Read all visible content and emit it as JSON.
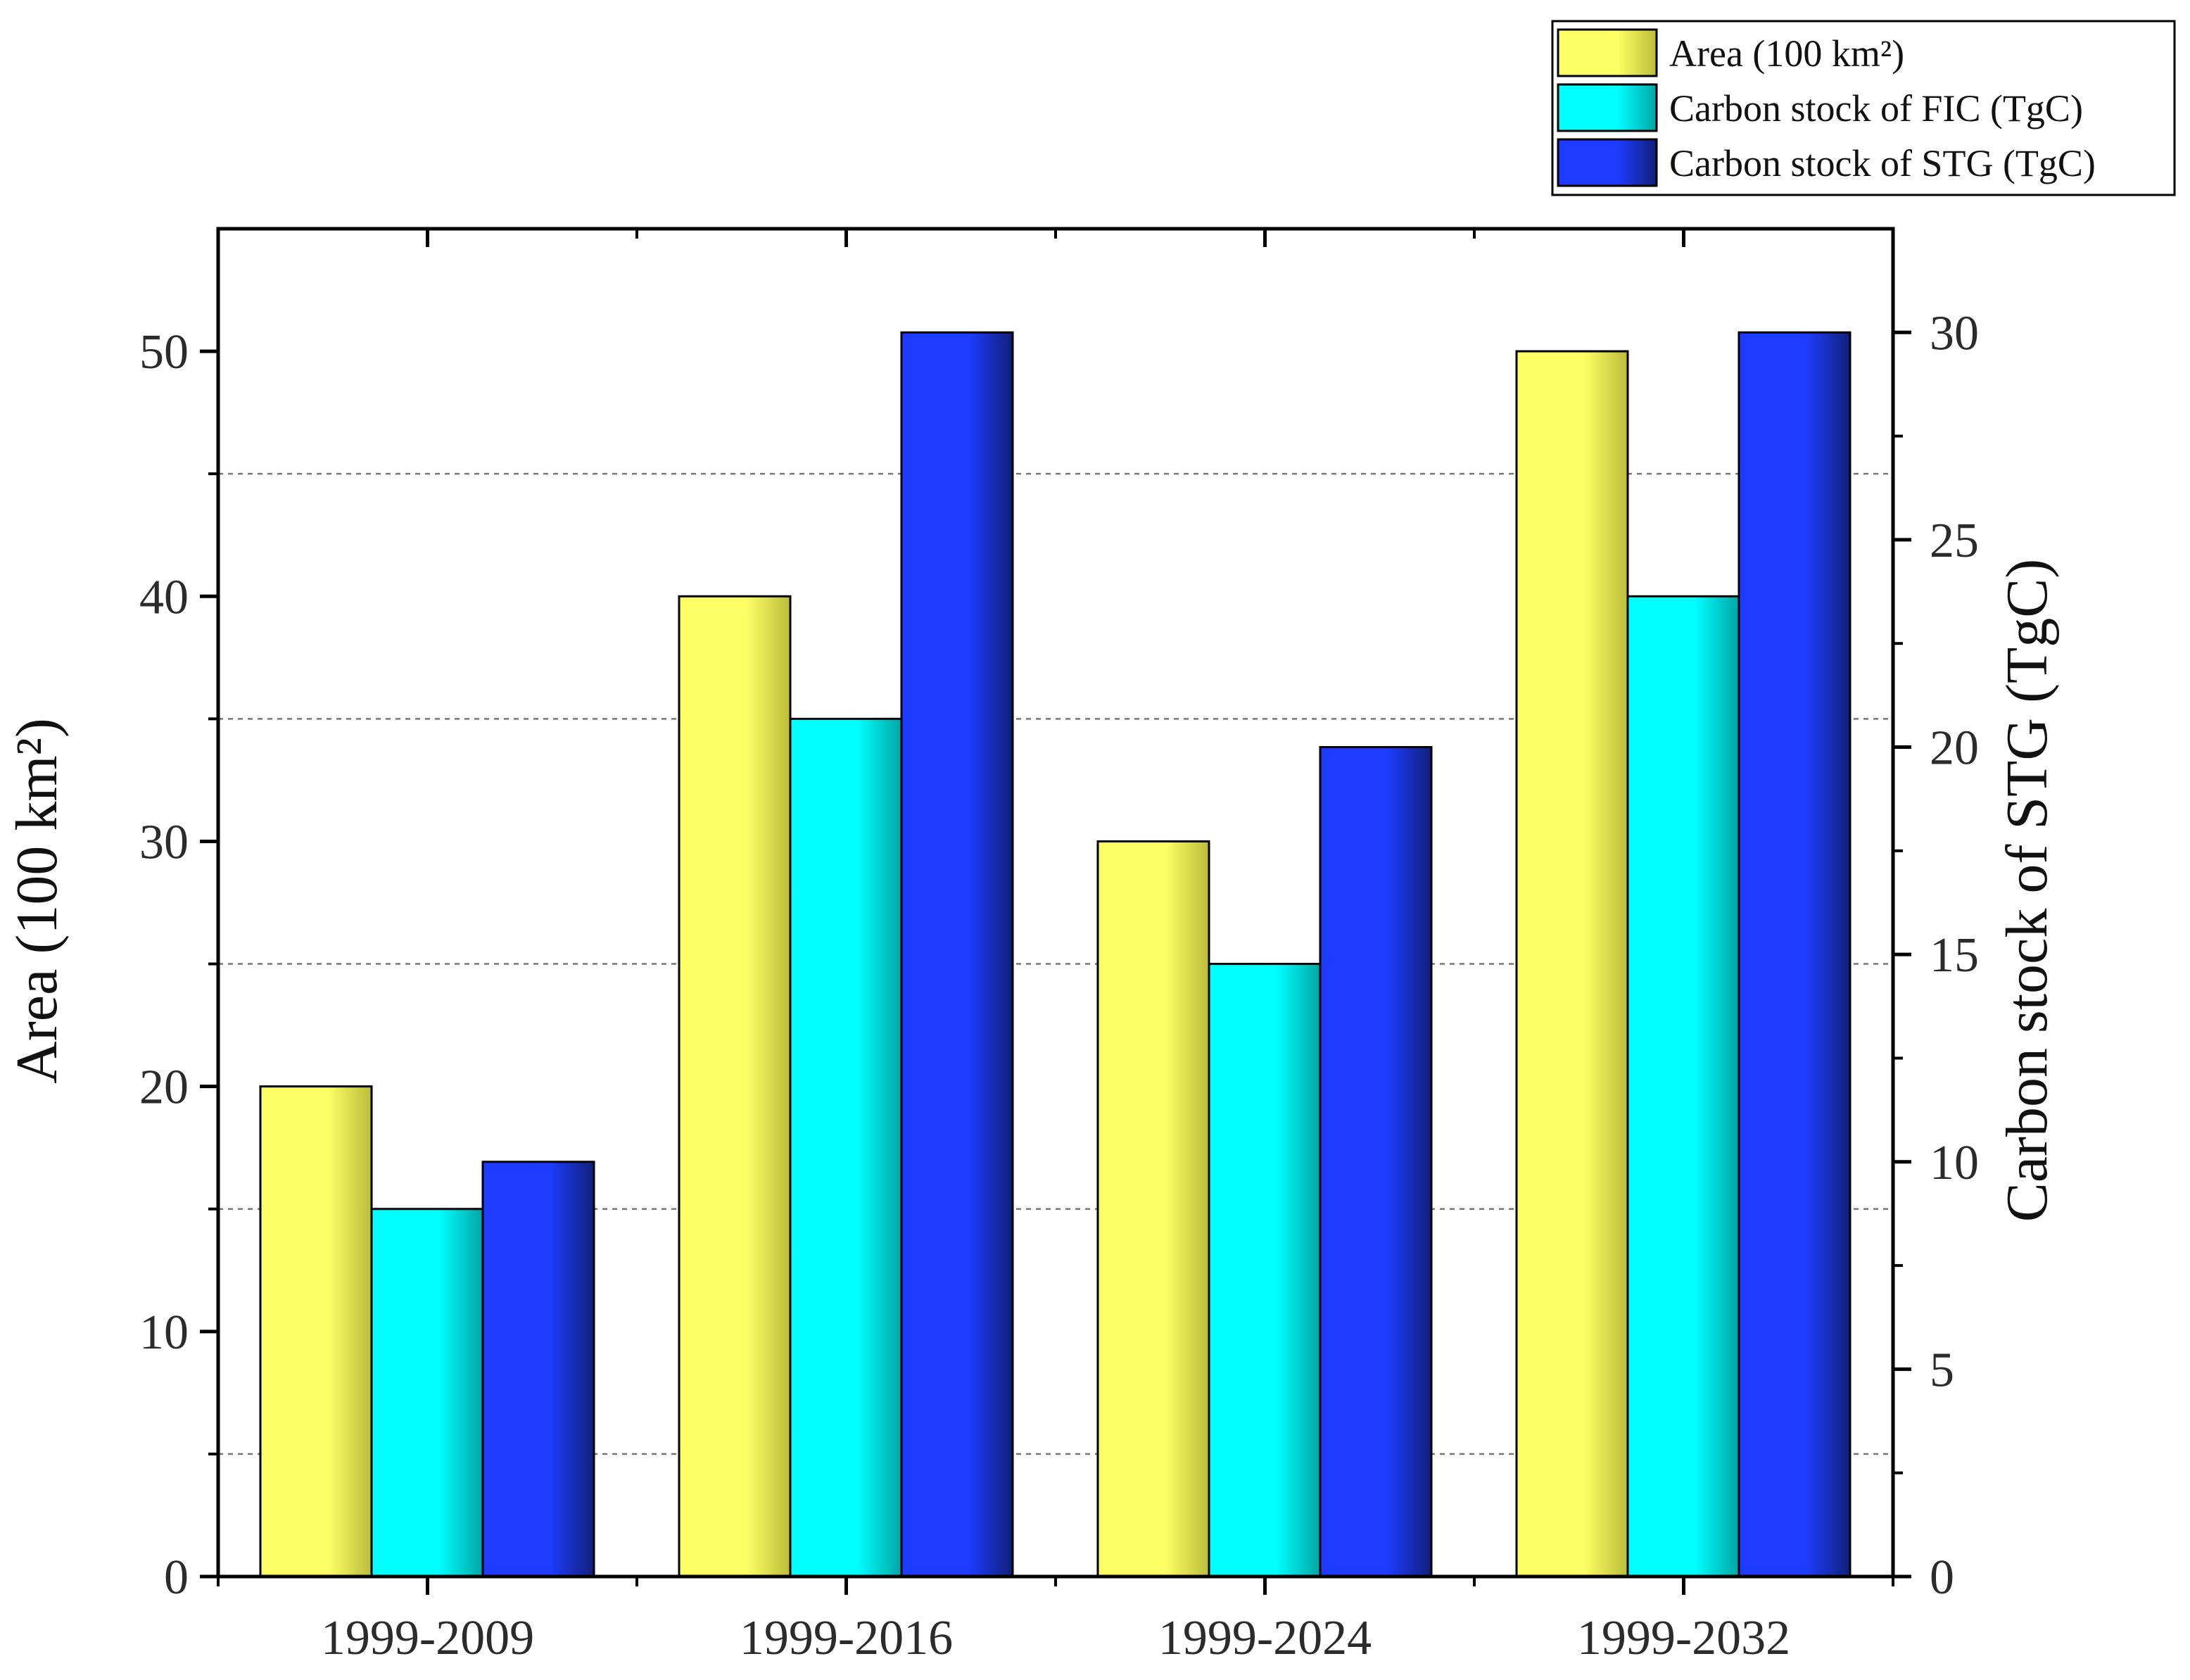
{
  "chart_data": {
    "type": "bar",
    "categories": [
      "1999-2009",
      "1999-2016",
      "1999-2024",
      "1999-2032"
    ],
    "series": [
      {
        "name": "Area (100 km²)",
        "axis": "left",
        "values": [
          20,
          40,
          30,
          50
        ],
        "color": "#ffff66",
        "color_dark": "#bcbc3a"
      },
      {
        "name": "Carbon stock of FIC (TgC)",
        "axis": "left",
        "values": [
          15,
          35,
          25,
          40
        ],
        "color": "#00ffff",
        "color_dark": "#00a6a6"
      },
      {
        "name": "Carbon stock of STG (TgC)",
        "axis": "right",
        "values": [
          10,
          30,
          20,
          30
        ],
        "color": "#1e3cff",
        "color_dark": "#10207a"
      }
    ],
    "ylabel": "Area (100 km²)",
    "y2label": "Carbon stock of STG (TgC)",
    "xlabel": "",
    "ylim": [
      0,
      55
    ],
    "y2lim": [
      0,
      32.5
    ],
    "yticks": [
      0,
      10,
      20,
      30,
      40,
      50
    ],
    "y2ticks": [
      0,
      5,
      10,
      15,
      20,
      25,
      30
    ],
    "gridlines": [
      5,
      15,
      25,
      35,
      45
    ],
    "legend_position": "top-right"
  }
}
